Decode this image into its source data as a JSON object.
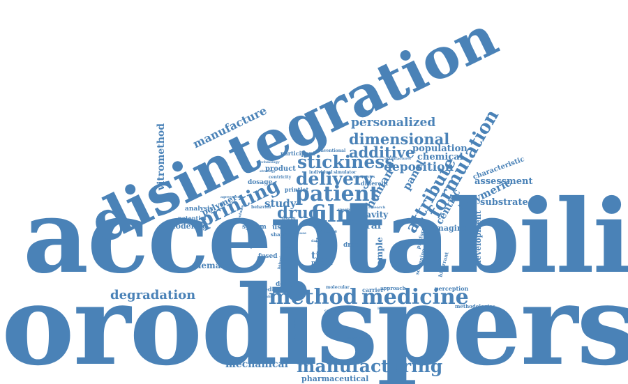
{
  "colors": {
    "word": "#4a82b7",
    "background": "#ffffff"
  },
  "words": {
    "orodispersible": "orodispersible",
    "acceptability": "acceptability",
    "disintegration": "disintegration",
    "method": "method",
    "medicine": "medicine",
    "manufacturing": "manufacturing",
    "film": "film",
    "patient": "patient",
    "printing": "printing",
    "delivery": "delivery",
    "stickiness": "stickiness",
    "formulation": "formulation",
    "attribute": "attribute",
    "dimensional": "dimensional",
    "additive": "additive",
    "personalized": "personalized",
    "drug": "drug",
    "deposition": "deposition",
    "degradation": "degradation",
    "manufacture": "manufacture",
    "vitromethod": "vitromethod",
    "mechanical": "mechanical",
    "pharmaceutical": "pharmaceutical",
    "study": "study",
    "human": "human",
    "centric": "centric",
    "panel": "panel",
    "polymeric": "polymeric",
    "substrate": "substrate",
    "assessment": "assessment",
    "population": "population",
    "chemical": "chemical",
    "characteristic": "characteristic",
    "oral": "oral",
    "cavity": "cavity",
    "sample": "sample",
    "imaging": "imaging",
    "development": "development",
    "demand": "demand",
    "modeling": "modeling",
    "polymer": "polymer",
    "analysis": "analysis",
    "potential": "potential",
    "system": "system",
    "time": "time",
    "vitro": "vitro",
    "fused": "fused",
    "model": "model",
    "design": "design",
    "prediction": "prediction",
    "product": "product",
    "dosage": "dosage",
    "participant": "participant",
    "user": "user",
    "shape": "shape",
    "printlet": "printlet",
    "different": "different",
    "conventional": "conventional",
    "individual": "individual",
    "simulator": "simulator",
    "geometries": "geometries",
    "manufacturer": "manufacturer",
    "technology": "technology",
    "centricity": "centricity",
    "agreement": "agreement",
    "behavior": "behavior",
    "special": "special",
    "current": "current",
    "research": "research",
    "drop": "drop",
    "score": "score",
    "carrier": "carrier",
    "approach": "approach",
    "platform": "platform",
    "screening": "screening",
    "perception": "perception",
    "bioerrant": "bioerrant",
    "methodologies": "methodologies",
    "molecular": "molecular",
    "comparable": "comparable",
    "knowledge": "knowledge",
    "measurement": "measurement",
    "novel": "novel",
    "defining": "defining",
    "printed": "printed",
    "weight": "weight",
    "volume": "volume",
    "testing": "testing",
    "forms": "forms",
    "behaviour": "behaviour",
    "data": "data",
    "strategy": "strategy",
    "release": "release",
    "needs": "needs",
    "loaded": "loaded"
  }
}
